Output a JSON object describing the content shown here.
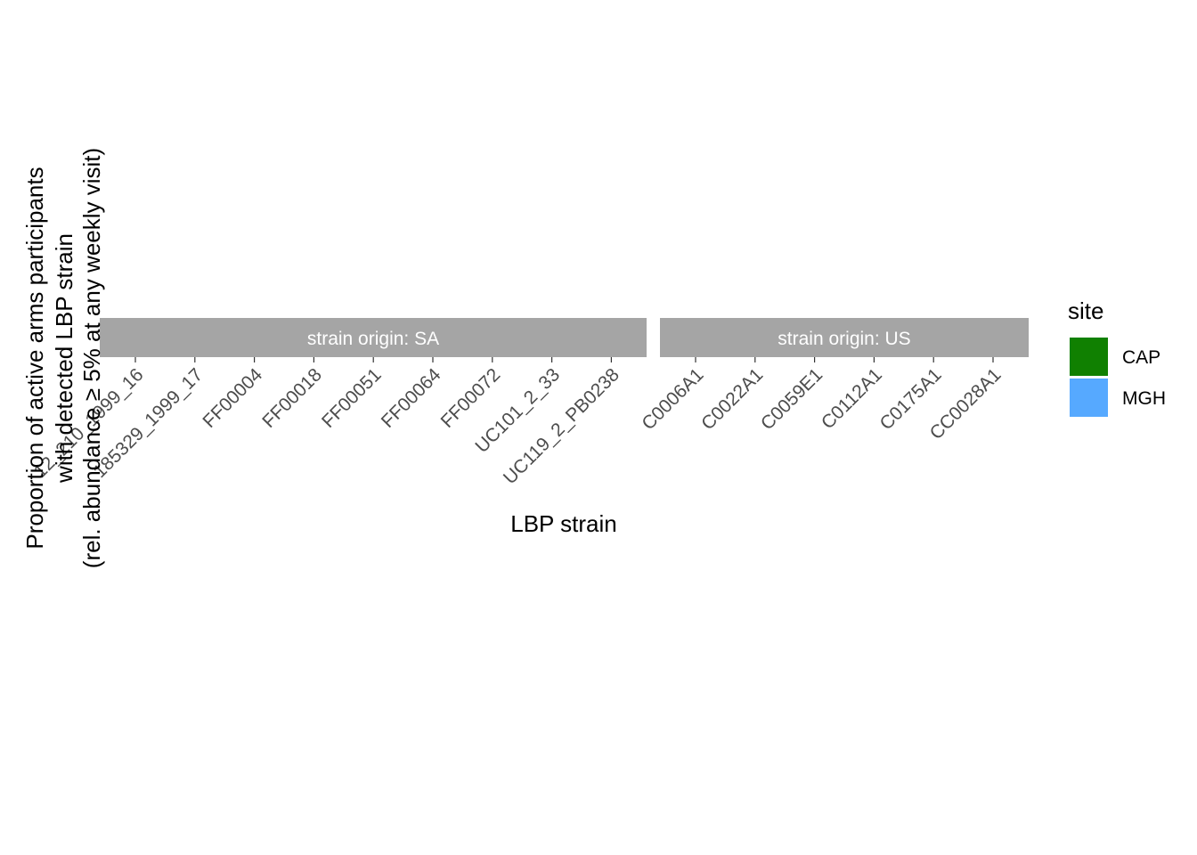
{
  "chart_data": {
    "type": "bar",
    "title": "",
    "xlabel": "LBP strain",
    "ylabel_lines": [
      "Proportion of active arms participants",
      "with detected LBP strain",
      "(rel. abundance ≥ 5% at any weekly visit)"
    ],
    "panels": [
      {
        "strip": "strain origin: SA",
        "categories": [
          "12_210_1999_16",
          "185329_1999_17",
          "FF00004",
          "FF00018",
          "FF00051",
          "FF00064",
          "FF00072",
          "UC101_2_33",
          "UC119_2_PB0238"
        ]
      },
      {
        "strip": "strain origin: US",
        "categories": [
          "C0006A1",
          "C0022A1",
          "C0059E1",
          "C0112A1",
          "C0175A1",
          "CC0028A1"
        ]
      }
    ],
    "series": [
      {
        "name": "CAP",
        "color": "#108001",
        "values": []
      },
      {
        "name": "MGH",
        "color": "#56a9ff",
        "values": []
      }
    ],
    "legend": {
      "title": "site",
      "position": "right",
      "items": [
        {
          "label": "CAP",
          "color": "#108001"
        },
        {
          "label": "MGH",
          "color": "#56a9ff"
        }
      ]
    },
    "strip_color": "#a5a5a5",
    "grid": false
  }
}
